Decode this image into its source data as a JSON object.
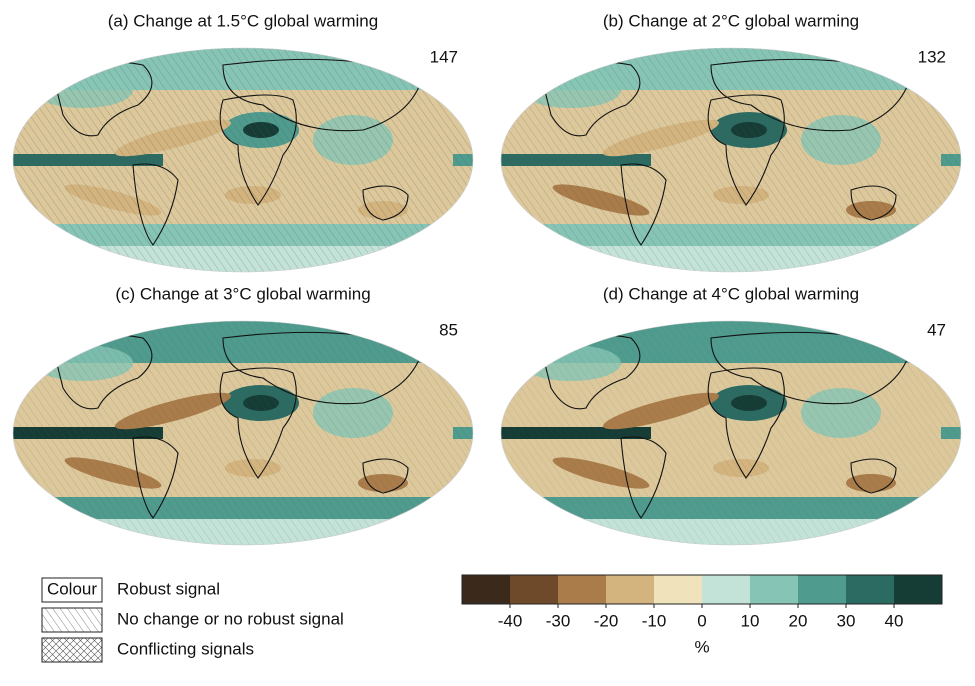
{
  "panels": [
    {
      "title": "(a) Change at 1.5°C global warming",
      "count": "147"
    },
    {
      "title": "(b) Change at 2°C global warming",
      "count": "132"
    },
    {
      "title": "(c) Change at 3°C global warming",
      "count": "85"
    },
    {
      "title": "(d) Change at 4°C global warming",
      "count": "47"
    }
  ],
  "legend": [
    {
      "swatch": "Colour",
      "label": "Robust signal"
    },
    {
      "label": "No change or no robust signal"
    },
    {
      "label": "Conflicting signals"
    }
  ],
  "colorbar": {
    "colors": [
      "#3b2a1c",
      "#6e4a2a",
      "#a97c4a",
      "#d3b47e",
      "#f0e3bb",
      "#c3e3d9",
      "#86c5b5",
      "#4f9b8e",
      "#2c6b62",
      "#163c36"
    ],
    "lim": [
      -50,
      50
    ],
    "ticks": [
      -40,
      -30,
      -20,
      -10,
      0,
      10,
      20,
      30,
      40
    ],
    "unit": "%"
  }
}
